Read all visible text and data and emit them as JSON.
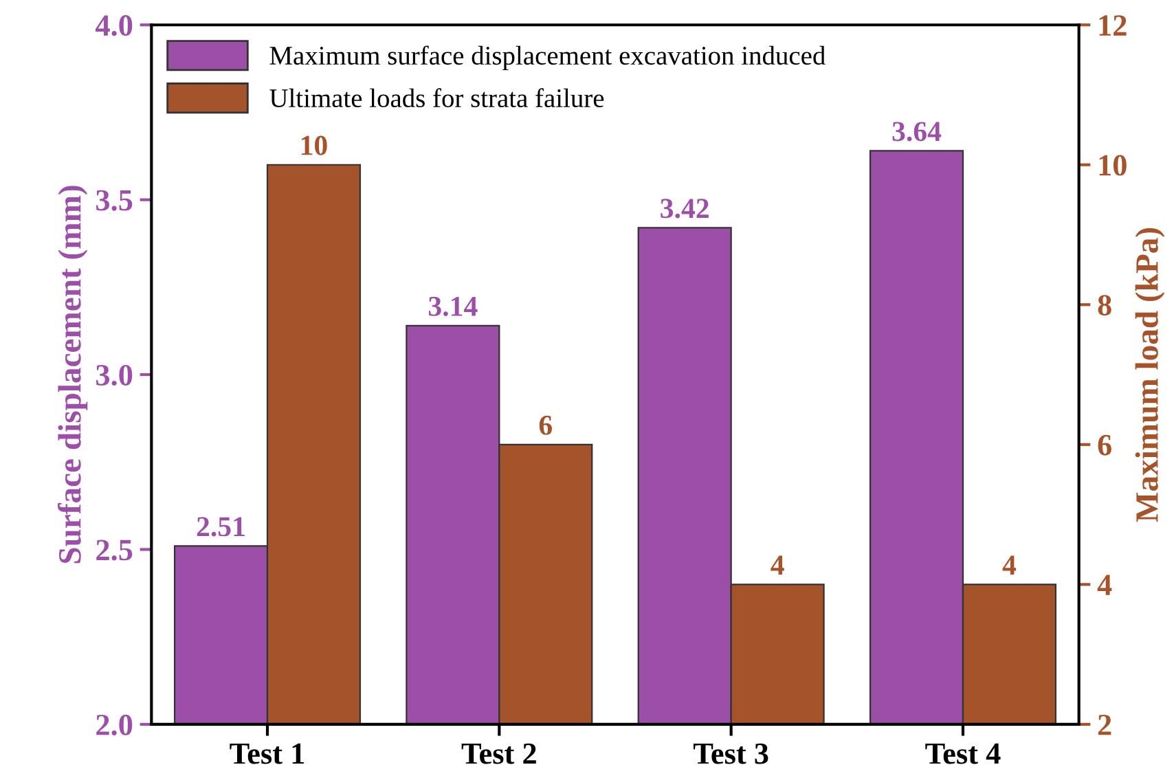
{
  "chart_data": {
    "type": "bar",
    "categories": [
      "Test 1",
      "Test 2",
      "Test 3",
      "Test 4"
    ],
    "series": [
      {
        "name": "Maximum surface displacement excavation induced",
        "color": "#9b4fa6",
        "values": [
          2.51,
          3.14,
          3.42,
          3.64
        ]
      },
      {
        "name": "Ultimate loads for strata failure",
        "color": "#a5532a",
        "values": [
          10,
          6,
          4,
          4
        ],
        "axis": "y2"
      }
    ],
    "ylabel": "Surface displacement (mm)",
    "y2label": "Maximum load (kPa)",
    "ylim": [
      2.0,
      4.0
    ],
    "yticks": [
      {
        "value": 2.0,
        "label": "2.0"
      },
      {
        "value": 2.5,
        "label": "2.5"
      },
      {
        "value": 3.0,
        "label": "3.0"
      },
      {
        "value": 3.5,
        "label": "3.5"
      },
      {
        "value": 4.0,
        "label": "4.0"
      }
    ],
    "y2lim": [
      2,
      12
    ],
    "y2ticks": [
      2,
      4,
      6,
      8,
      10,
      12
    ],
    "data_labels": true,
    "legend": "top left",
    "grid": false
  }
}
